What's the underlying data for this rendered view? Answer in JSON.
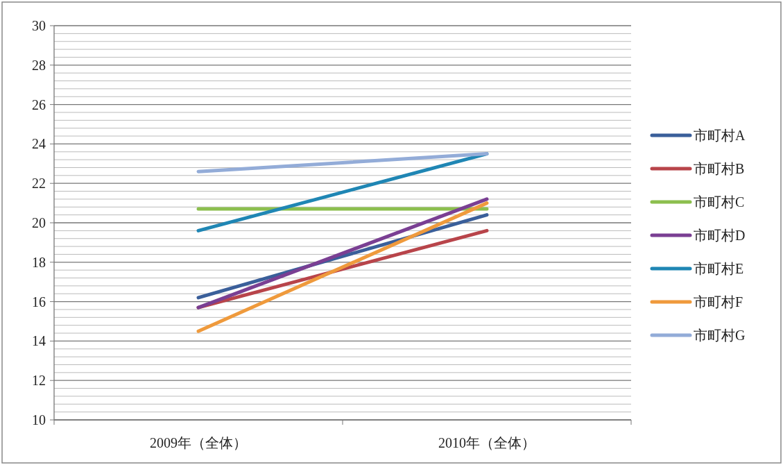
{
  "chart_data": {
    "type": "line",
    "categories": [
      "2009年（全体）",
      "2010年（全体）"
    ],
    "series": [
      {
        "name": "市町村A",
        "color": "#3a5f9a",
        "values": [
          16.2,
          20.4
        ]
      },
      {
        "name": "市町村B",
        "color": "#b8444a",
        "values": [
          15.7,
          19.6
        ]
      },
      {
        "name": "市町村C",
        "color": "#8cbf4e",
        "values": [
          20.7,
          20.7
        ]
      },
      {
        "name": "市町村D",
        "color": "#7a3f93",
        "values": [
          15.7,
          21.2
        ]
      },
      {
        "name": "市町村E",
        "color": "#1f86b4",
        "values": [
          19.6,
          23.5
        ]
      },
      {
        "name": "市町村F",
        "color": "#ef9a3c",
        "values": [
          14.5,
          21.0
        ]
      },
      {
        "name": "市町村G",
        "color": "#93acd8",
        "values": [
          22.6,
          23.5
        ]
      }
    ],
    "ylim": [
      10,
      30
    ],
    "yticks": [
      10,
      12,
      14,
      16,
      18,
      20,
      22,
      24,
      26,
      28,
      30
    ],
    "grid": "y",
    "legend": "right",
    "marker": "none"
  }
}
